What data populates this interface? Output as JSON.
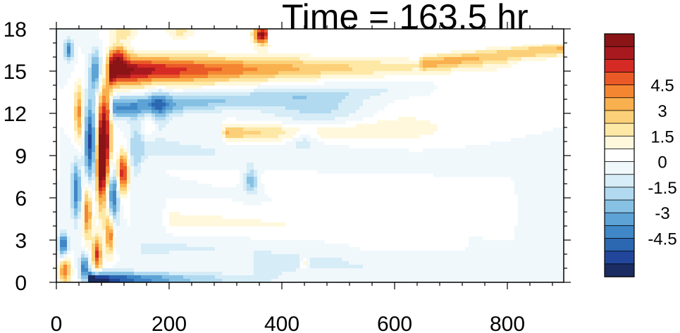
{
  "chart_data": {
    "type": "heatmap",
    "title": "Time = 163.5 hr",
    "xlabel": "",
    "ylabel": "",
    "xlim": [
      0,
      900
    ],
    "ylim": [
      0,
      18
    ],
    "x_ticks": [
      0,
      200,
      400,
      600,
      800
    ],
    "y_ticks": [
      0,
      3,
      6,
      9,
      12,
      15,
      18
    ],
    "x_tick_labels": [
      "0",
      "200",
      "400",
      "600",
      "800"
    ],
    "y_tick_labels": [
      "0",
      "3",
      "6",
      "9",
      "12",
      "15",
      "18"
    ],
    "grid": false,
    "colorbar": {
      "min": -6,
      "max": 6,
      "step": 0.75,
      "labels": [
        "4.5",
        "3",
        "1.5",
        "0",
        "-1.5",
        "-3",
        "-4.5"
      ],
      "label_values": [
        4.5,
        3,
        1.5,
        0,
        -1.5,
        -3,
        -4.5
      ],
      "colors": [
        "#1b2c62",
        "#21469b",
        "#2c67b1",
        "#4087c7",
        "#5da3d6",
        "#86c1e4",
        "#b1daf0",
        "#d6ecf7",
        "#f0f8fc",
        "#ffffff",
        "#fff8dc",
        "#fde8a6",
        "#fcd078",
        "#f9b04e",
        "#f48632",
        "#ea5a27",
        "#d52b24",
        "#a8191f",
        "#8a1416"
      ]
    },
    "features": [
      {
        "kind": "band",
        "x0": 95,
        "x1": 800,
        "yc0": 15.0,
        "yc1": 15.4,
        "w0": 1.1,
        "w1": 0.5,
        "a0": 7.5,
        "a1": 2.5,
        "decay": 650
      },
      {
        "kind": "band",
        "x0": 650,
        "x1": 900,
        "yc0": 15.6,
        "yc1": 16.6,
        "w0": 0.5,
        "w1": 0.5,
        "a0": 2.5,
        "a1": 3.2,
        "decay": 10000
      },
      {
        "kind": "band",
        "x0": 100,
        "x1": 650,
        "yc0": 12.4,
        "yc1": 13.8,
        "w0": 0.8,
        "w1": 0.5,
        "a0": -4.2,
        "a1": -1.5,
        "decay": 520
      },
      {
        "kind": "band",
        "x0": 300,
        "x1": 700,
        "yc0": 10.6,
        "yc1": 10.8,
        "w0": 0.6,
        "w1": 0.8,
        "a0": 3.3,
        "a1": 1.0,
        "decay": 350
      },
      {
        "kind": "band",
        "x0": 150,
        "x1": 900,
        "yc0": 9.0,
        "yc1": 7.0,
        "w0": 1.4,
        "w1": 1.5,
        "a0": -1.8,
        "a1": -0.4,
        "decay": 700
      },
      {
        "kind": "band",
        "x0": 150,
        "x1": 800,
        "yc0": 8.5,
        "yc1": 6.5,
        "w0": 1.0,
        "w1": 1.2,
        "a0": 1.3,
        "a1": 0.7,
        "decay": 1500
      },
      {
        "kind": "band",
        "x0": 60,
        "x1": 400,
        "yc0": 0.2,
        "yc1": 0.2,
        "w0": 0.5,
        "w1": 0.5,
        "a0": -7.5,
        "a1": -2.0,
        "decay": 260
      },
      {
        "kind": "band",
        "x0": 350,
        "x1": 900,
        "yc0": 1.2,
        "yc1": 1.0,
        "w0": 0.7,
        "w1": 0.6,
        "a0": -1.0,
        "a1": -0.5,
        "decay": 2000
      },
      {
        "kind": "band",
        "x0": 200,
        "x1": 700,
        "yc0": 4.5,
        "yc1": 3.5,
        "w0": 0.8,
        "w1": 0.8,
        "a0": 1.0,
        "a1": 0.6,
        "decay": 2000
      },
      {
        "kind": "band",
        "x0": 150,
        "x1": 500,
        "yc0": 2.5,
        "yc1": 2.0,
        "w0": 0.7,
        "w1": 0.7,
        "a0": -1.0,
        "a1": -0.5,
        "decay": 2000
      },
      {
        "kind": "blob",
        "x": 85,
        "y": 10.0,
        "sx": 12,
        "sy": 4.0,
        "a": 7.5
      },
      {
        "kind": "blob",
        "x": 78,
        "y": 8.0,
        "sx": 8,
        "sy": 2.5,
        "a": 4.0
      },
      {
        "kind": "blob",
        "x": 118,
        "y": 7.8,
        "sx": 10,
        "sy": 1.4,
        "a": 6.0
      },
      {
        "kind": "blob",
        "x": 100,
        "y": 6.0,
        "sx": 10,
        "sy": 2.2,
        "a": -5.0
      },
      {
        "kind": "blob",
        "x": 60,
        "y": 10.0,
        "sx": 10,
        "sy": 3.0,
        "a": -5.5
      },
      {
        "kind": "blob",
        "x": 40,
        "y": 12.0,
        "sx": 8,
        "sy": 2.0,
        "a": 4.0
      },
      {
        "kind": "blob",
        "x": 22,
        "y": 16.5,
        "sx": 8,
        "sy": 0.8,
        "a": -4.0
      },
      {
        "kind": "blob",
        "x": 70,
        "y": 15.0,
        "sx": 10,
        "sy": 1.5,
        "a": -4.0
      },
      {
        "kind": "blob",
        "x": 35,
        "y": 6.5,
        "sx": 8,
        "sy": 2.0,
        "a": -4.5
      },
      {
        "kind": "blob",
        "x": 55,
        "y": 5.0,
        "sx": 8,
        "sy": 2.0,
        "a": 4.5
      },
      {
        "kind": "blob",
        "x": 95,
        "y": 3.5,
        "sx": 8,
        "sy": 1.5,
        "a": 5.0
      },
      {
        "kind": "blob",
        "x": 72,
        "y": 2.0,
        "sx": 8,
        "sy": 1.2,
        "a": 5.5
      },
      {
        "kind": "blob",
        "x": 50,
        "y": 1.0,
        "sx": 8,
        "sy": 1.0,
        "a": -4.5
      },
      {
        "kind": "blob",
        "x": 15,
        "y": 0.8,
        "sx": 10,
        "sy": 0.9,
        "a": 4.5
      },
      {
        "kind": "blob",
        "x": 12,
        "y": 2.7,
        "sx": 8,
        "sy": 0.8,
        "a": -5.0
      },
      {
        "kind": "blob",
        "x": 140,
        "y": 9.5,
        "sx": 12,
        "sy": 2.0,
        "a": -2.2
      },
      {
        "kind": "blob",
        "x": 110,
        "y": 16.2,
        "sx": 14,
        "sy": 0.8,
        "a": 3.5
      },
      {
        "kind": "blob",
        "x": 120,
        "y": 17.7,
        "sx": 25,
        "sy": 0.5,
        "a": 2.0
      },
      {
        "kind": "blob",
        "x": 220,
        "y": 17.8,
        "sx": 25,
        "sy": 0.5,
        "a": 1.8
      },
      {
        "kind": "blob",
        "x": 365,
        "y": 17.6,
        "sx": 15,
        "sy": 0.7,
        "a": 7.0
      },
      {
        "kind": "blob",
        "x": 180,
        "y": 12.5,
        "sx": 20,
        "sy": 1.5,
        "a": -2.0
      },
      {
        "kind": "blob",
        "x": 165,
        "y": 11.5,
        "sx": 12,
        "sy": 1.2,
        "a": 1.5
      },
      {
        "kind": "blob",
        "x": 345,
        "y": 7.2,
        "sx": 12,
        "sy": 0.9,
        "a": -3.0
      },
      {
        "kind": "blob",
        "x": 440,
        "y": 10.2,
        "sx": 25,
        "sy": 0.7,
        "a": -1.5
      },
      {
        "kind": "blob",
        "x": 440,
        "y": 1.3,
        "sx": 8,
        "sy": 0.4,
        "a": 2.0
      },
      {
        "kind": "blob",
        "x": 470,
        "y": 12.3,
        "sx": 100,
        "sy": 1.2,
        "a": -1.8
      },
      {
        "kind": "blob",
        "x": 600,
        "y": 11.5,
        "sx": 100,
        "sy": 1.5,
        "a": 0.8
      }
    ]
  }
}
